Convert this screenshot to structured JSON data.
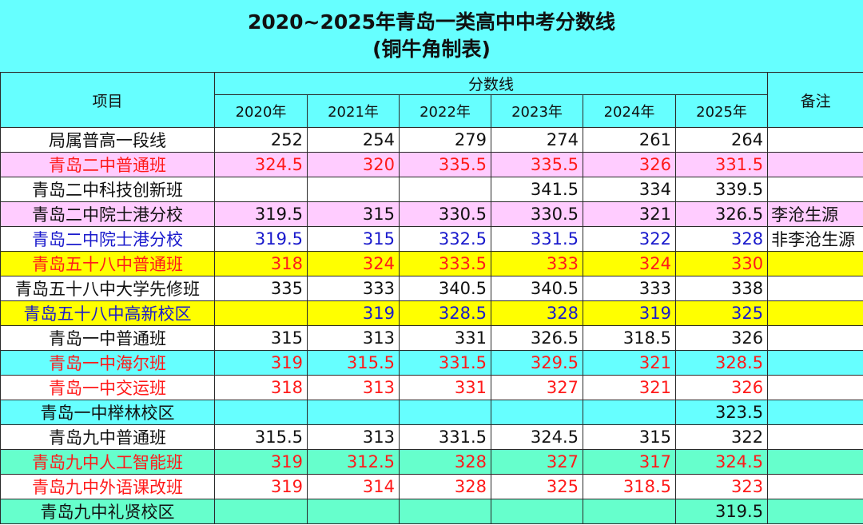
{
  "title": {
    "main": "2020~2025年青岛一类高中中考分数线",
    "sub": "(铜牛角制表)"
  },
  "header": {
    "item": "项目",
    "group": "分数线",
    "note": "备注",
    "years": [
      "2020年",
      "2021年",
      "2022年",
      "2023年",
      "2024年",
      "2025年"
    ]
  },
  "colors": {
    "header_bg": "#66ffff",
    "pink": "#ffccff",
    "yellow": "#ffff00",
    "cyan": "#66ffff",
    "mint": "#66ffcc",
    "red_text": "#ff1a1a",
    "blue_text": "#1a1acc"
  },
  "rows": [
    {
      "name": "局属普高一段线",
      "scores": [
        "252",
        "254",
        "279",
        "274",
        "261",
        "264"
      ],
      "note": "",
      "bg": "white",
      "color": "black"
    },
    {
      "name": "青岛二中普通班",
      "scores": [
        "324.5",
        "320",
        "335.5",
        "335.5",
        "326",
        "331.5"
      ],
      "note": "",
      "bg": "pink",
      "color": "red"
    },
    {
      "name": "青岛二中科技创新班",
      "scores": [
        "",
        "",
        "",
        "341.5",
        "334",
        "339.5"
      ],
      "note": "",
      "bg": "white",
      "color": "black"
    },
    {
      "name": "青岛二中院士港分校",
      "scores": [
        "319.5",
        "315",
        "330.5",
        "330.5",
        "321",
        "326.5"
      ],
      "note": "李沧生源",
      "bg": "pink",
      "color": "black"
    },
    {
      "name": "青岛二中院士港分校",
      "scores": [
        "319.5",
        "315",
        "332.5",
        "331.5",
        "322",
        "328"
      ],
      "note": "非李沧生源",
      "bg": "white",
      "color": "blue"
    },
    {
      "name": "青岛五十八中普通班",
      "scores": [
        "318",
        "324",
        "333.5",
        "333",
        "324",
        "330"
      ],
      "note": "",
      "bg": "yellow",
      "color": "red"
    },
    {
      "name": "青岛五十八中大学先修班",
      "scores": [
        "335",
        "333",
        "340.5",
        "340.5",
        "333",
        "338"
      ],
      "note": "",
      "bg": "white",
      "color": "black"
    },
    {
      "name": "青岛五十八中高新校区",
      "scores": [
        "",
        "319",
        "328.5",
        "328",
        "319",
        "325"
      ],
      "note": "",
      "bg": "yellow",
      "color": "blue"
    },
    {
      "name": "青岛一中普通班",
      "scores": [
        "315",
        "313",
        "331",
        "326.5",
        "318.5",
        "326"
      ],
      "note": "",
      "bg": "white",
      "color": "black"
    },
    {
      "name": "青岛一中海尔班",
      "scores": [
        "319",
        "315.5",
        "331.5",
        "329.5",
        "321",
        "328.5"
      ],
      "note": "",
      "bg": "cyan",
      "color": "red"
    },
    {
      "name": "青岛一中交运班",
      "scores": [
        "318",
        "313",
        "331",
        "327",
        "321",
        "326"
      ],
      "note": "",
      "bg": "white",
      "color": "red"
    },
    {
      "name": "青岛一中榉林校区",
      "scores": [
        "",
        "",
        "",
        "",
        "",
        "323.5"
      ],
      "note": "",
      "bg": "cyan",
      "color": "black"
    },
    {
      "name": "青岛九中普通班",
      "scores": [
        "315.5",
        "313",
        "331.5",
        "324.5",
        "315",
        "322"
      ],
      "note": "",
      "bg": "white",
      "color": "black"
    },
    {
      "name": "青岛九中人工智能班",
      "scores": [
        "319",
        "312.5",
        "328",
        "327",
        "317",
        "324.5"
      ],
      "note": "",
      "bg": "mint",
      "color": "red"
    },
    {
      "name": "青岛九中外语课改班",
      "scores": [
        "319",
        "314",
        "328",
        "325",
        "318.5",
        "323"
      ],
      "note": "",
      "bg": "white",
      "color": "red"
    },
    {
      "name": "青岛九中礼贤校区",
      "scores": [
        "",
        "",
        "",
        "",
        "",
        "319.5"
      ],
      "note": "",
      "bg": "mint",
      "color": "black"
    }
  ]
}
